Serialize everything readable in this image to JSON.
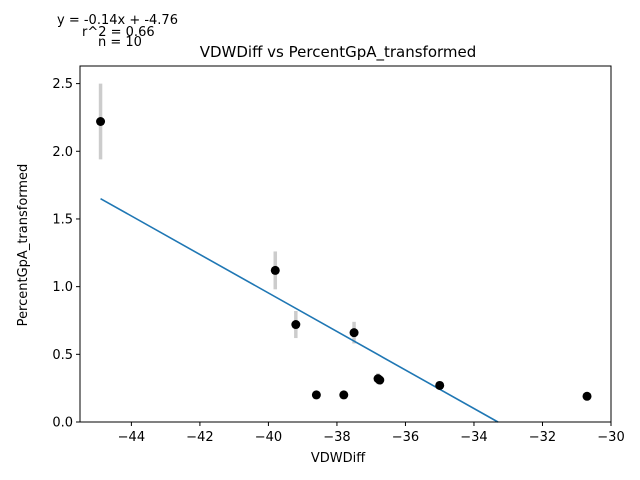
{
  "annotations": {
    "equation": "y = -0.14x + -4.76",
    "r2": "r^2 = 0.66",
    "n": "n = 10"
  },
  "colors": {
    "points": "#000000",
    "fit_line": "#1f77b4",
    "error_bars": "#cccccc"
  },
  "chart_data": {
    "type": "scatter",
    "title": "VDWDiff vs PercentGpA_transformed",
    "xlabel": "VDWDiff",
    "ylabel": "PercentGpA_transformed",
    "xlim": [
      -45.5,
      -30.0
    ],
    "ylim": [
      0.0,
      2.63
    ],
    "xticks": [
      -44,
      -42,
      -40,
      -38,
      -36,
      -34,
      -32,
      -30
    ],
    "xtick_labels": [
      "−44",
      "−42",
      "−40",
      "−38",
      "−36",
      "−34",
      "−32",
      "−30"
    ],
    "yticks": [
      0.0,
      0.5,
      1.0,
      1.5,
      2.0,
      2.5
    ],
    "ytick_labels": [
      "0.0",
      "0.5",
      "1.0",
      "1.5",
      "2.0",
      "2.5"
    ],
    "grid": false,
    "points": [
      {
        "x": -44.9,
        "y": 2.22,
        "err": 0.28
      },
      {
        "x": -39.8,
        "y": 1.12,
        "err": 0.14
      },
      {
        "x": -39.2,
        "y": 0.72,
        "err": 0.1
      },
      {
        "x": -38.6,
        "y": 0.2,
        "err": 0.0
      },
      {
        "x": -37.8,
        "y": 0.2,
        "err": 0.0
      },
      {
        "x": -37.5,
        "y": 0.66,
        "err": 0.08
      },
      {
        "x": -36.8,
        "y": 0.32,
        "err": 0.04
      },
      {
        "x": -36.75,
        "y": 0.31,
        "err": 0.0
      },
      {
        "x": -35.0,
        "y": 0.27,
        "err": 0.0
      },
      {
        "x": -30.7,
        "y": 0.19,
        "err": 0.0
      }
    ],
    "fit": {
      "x_start": -44.9,
      "y_start": 1.65,
      "x_end": -33.3,
      "y_end": 0.0
    }
  }
}
